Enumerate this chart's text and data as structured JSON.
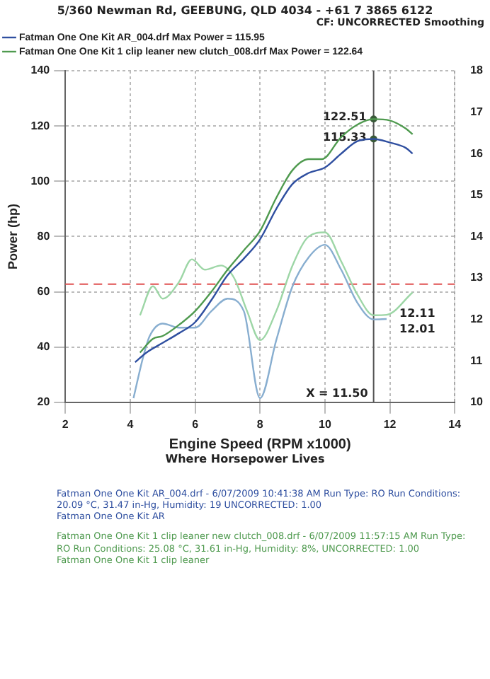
{
  "chart_data": {
    "type": "line",
    "title": "5/360 Newman Rd, GEEBUNG, QLD 4034 - +61 7 3865 6122",
    "subtitle": "Where Horsepower Lives",
    "xlabel": "Engine Speed (RPM x1000)",
    "ylabel": "Power (hp)",
    "xlim": [
      2,
      14
    ],
    "xticks": [
      2,
      4,
      6,
      8,
      10,
      12,
      14
    ],
    "ylim": [
      20,
      140
    ],
    "yticks": [
      20,
      40,
      60,
      80,
      100,
      120,
      140
    ],
    "y2lim": [
      10,
      18
    ],
    "y2ticks": [
      10,
      11,
      12,
      13,
      14,
      15,
      16,
      17,
      18
    ],
    "grid": true,
    "legend": "top left",
    "marker": "none",
    "line_style": "solid",
    "series": [
      {
        "name": "Fatman One One Kit AR_004.drf Max Power = 115.95",
        "color": "#2f4fa0",
        "x": [
          4.15,
          4.5,
          5,
          5.5,
          6,
          6.5,
          7,
          7.5,
          8,
          8.5,
          9,
          9.5,
          10,
          10.5,
          11,
          11.5,
          12,
          12.5,
          12.7
        ],
        "values": [
          34.5,
          38,
          41.5,
          45,
          49,
          57,
          66,
          72,
          79,
          90,
          99,
          103,
          105,
          110,
          114.5,
          115.3,
          114,
          112,
          110
        ]
      },
      {
        "name": "Fatman One One Kit 1 clip leaner new clutch_008.drf Max Power = 122.64",
        "color": "#4f9a4f",
        "x": [
          4.3,
          4.7,
          5,
          5.5,
          6,
          6.5,
          7,
          7.5,
          8,
          8.5,
          9,
          9.5,
          9.9,
          10.5,
          11,
          11.5,
          12,
          12.5,
          12.7
        ],
        "values": [
          38,
          43,
          44,
          48,
          53,
          60,
          68,
          75,
          82,
          94,
          104,
          108,
          108,
          116,
          120.5,
          122.5,
          122,
          119,
          117
        ]
      },
      {
        "axis": "y2",
        "color": "#88aed0",
        "x": [
          4.1,
          4.4,
          4.6,
          5,
          5.5,
          6,
          6.5,
          7,
          7.5,
          8,
          8.5,
          9,
          9.5,
          10,
          10.5,
          11,
          11.5,
          11.9
        ],
        "values": [
          10.1,
          11.1,
          11.6,
          11.9,
          11.8,
          11.8,
          12.2,
          12.5,
          12.2,
          10.1,
          11.5,
          12.8,
          13.5,
          13.8,
          13.2,
          12.4,
          12,
          12.01
        ]
      },
      {
        "axis": "y2",
        "color": "#9dd6a6",
        "x": [
          4.3,
          4.7,
          5,
          5.5,
          5.9,
          6.3,
          6.8,
          7.2,
          7.6,
          8,
          8.5,
          9,
          9.5,
          10,
          10.5,
          11,
          11.5,
          11.9,
          12.7
        ],
        "values": [
          12.1,
          12.8,
          12.5,
          12.9,
          13.45,
          13.2,
          13.3,
          13,
          12.2,
          11.5,
          12.2,
          13.3,
          14,
          14.1,
          13.4,
          12.6,
          12.1,
          12.11,
          12.65
        ]
      }
    ],
    "ref_lines": [
      {
        "axis": "x",
        "value": 11.5,
        "label": "X = 11.50",
        "color": "#555555",
        "line_style": "solid"
      },
      {
        "axis": "y2",
        "value": 12.85,
        "color": "#e05050",
        "line_style": "dashed"
      }
    ],
    "annotations": [
      {
        "text": "122.51",
        "x": 11.5,
        "y": 122.51
      },
      {
        "text": "115.33",
        "x": 11.5,
        "y": 115.33
      },
      "12.11",
      "12.01",
      "CF: UNCORRECTED Smoothing",
      "Fatman One One Kit AR_004.drf - 6/07/2009 10:41:38 AM Run Type: RO Run Conditions: 20.09 °C, 31.47 in-Hg, Humidity: 19 UNCORRECTED: 1.00",
      "Fatman One One Kit AR",
      "Fatman One One Kit 1 clip leaner new clutch_008.drf - 6/07/2009 11:57:15 AM Run Type: RO Run Conditions: 25.08 °C, 31.61 in-Hg, Humidity: 8%, UNCORRECTED: 1.00",
      "Fatman One One Kit 1 clip leaner"
    ]
  }
}
